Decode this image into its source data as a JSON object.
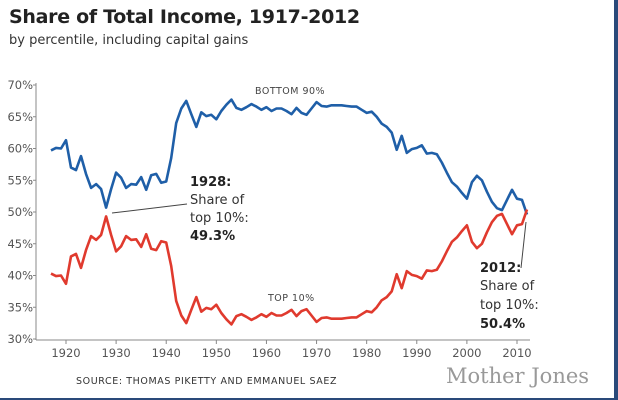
{
  "chart_data": {
    "type": "line",
    "title": "Share of Total Income, 1917-2012",
    "subtitle": "by percentile, including capital gains",
    "xlabel": "",
    "ylabel": "",
    "xlim": [
      1917,
      2012
    ],
    "ylim": [
      30,
      70
    ],
    "x_ticks": [
      1920,
      1930,
      1940,
      1950,
      1960,
      1970,
      1980,
      1990,
      2000,
      2010
    ],
    "x_tick_labels": [
      "1920",
      "1930",
      "1940",
      "1950",
      "1960",
      "1970",
      "1980",
      "1990",
      "2000",
      "2010"
    ],
    "y_ticks": [
      30,
      35,
      40,
      45,
      50,
      55,
      60,
      65,
      70
    ],
    "y_tick_labels": [
      "30%",
      "35%",
      "40%",
      "45%",
      "50%",
      "55%",
      "60%",
      "65%",
      "70%"
    ],
    "grid": false,
    "start_year": 1917,
    "series": [
      {
        "name": "BOTTOM 90%",
        "label": "BOTTOM 90%",
        "color": "#1f5fa8",
        "values": [
          59.7,
          60.1,
          60.0,
          61.3,
          57.0,
          56.6,
          58.8,
          56.0,
          53.8,
          54.4,
          53.6,
          50.7,
          53.6,
          56.2,
          55.4,
          53.8,
          54.4,
          54.3,
          55.5,
          53.5,
          55.8,
          56.0,
          54.6,
          54.8,
          58.5,
          64.0,
          66.3,
          67.5,
          65.4,
          63.4,
          65.7,
          65.1,
          65.3,
          64.6,
          65.9,
          66.9,
          67.7,
          66.4,
          66.1,
          66.5,
          67.0,
          66.6,
          66.1,
          66.5,
          65.9,
          66.3,
          66.3,
          65.9,
          65.4,
          66.4,
          65.6,
          65.3,
          66.3,
          67.3,
          66.7,
          66.6,
          66.8,
          66.8,
          66.8,
          66.7,
          66.6,
          66.6,
          66.1,
          65.6,
          65.8,
          65.0,
          63.9,
          63.4,
          62.5,
          59.8,
          62.0,
          59.3,
          59.9,
          60.1,
          60.5,
          59.2,
          59.3,
          59.1,
          57.8,
          56.2,
          54.7,
          54.0,
          53.0,
          52.1,
          54.7,
          55.7,
          55.0,
          53.2,
          51.6,
          50.6,
          50.3,
          51.9,
          53.5,
          52.1,
          51.9,
          49.6
        ]
      },
      {
        "name": "TOP 10%",
        "label": "TOP 10%",
        "color": "#e03a2e",
        "values": [
          40.3,
          39.9,
          40.0,
          38.7,
          43.0,
          43.4,
          41.2,
          44.0,
          46.2,
          45.6,
          46.4,
          49.3,
          46.4,
          43.8,
          44.6,
          46.2,
          45.6,
          45.7,
          44.5,
          46.5,
          44.2,
          44.0,
          45.4,
          45.2,
          41.5,
          36.0,
          33.7,
          32.5,
          34.6,
          36.6,
          34.3,
          34.9,
          34.7,
          35.4,
          34.1,
          33.1,
          32.3,
          33.6,
          33.9,
          33.5,
          33.0,
          33.4,
          33.9,
          33.5,
          34.1,
          33.7,
          33.7,
          34.1,
          34.6,
          33.6,
          34.4,
          34.7,
          33.7,
          32.7,
          33.3,
          33.4,
          33.2,
          33.2,
          33.2,
          33.3,
          33.4,
          33.4,
          33.9,
          34.4,
          34.2,
          35.0,
          36.1,
          36.6,
          37.5,
          40.2,
          38.0,
          40.7,
          40.1,
          39.9,
          39.5,
          40.8,
          40.7,
          40.9,
          42.2,
          43.8,
          45.3,
          46.0,
          47.0,
          47.9,
          45.3,
          44.3,
          45.0,
          46.8,
          48.4,
          49.4,
          49.7,
          48.1,
          46.5,
          47.9,
          48.1,
          50.4
        ]
      }
    ],
    "annotations": [
      {
        "year": 1928,
        "lines": [
          "1928:",
          "Share of",
          "top 10%:",
          "49.3%"
        ]
      },
      {
        "year": 2012,
        "lines": [
          "2012:",
          "Share of",
          "top 10%:",
          "50.4%"
        ]
      }
    ]
  },
  "source": "SOURCE: THOMAS PIKETTY AND EMMANUEL SAEZ",
  "logo": "Mother Jones"
}
